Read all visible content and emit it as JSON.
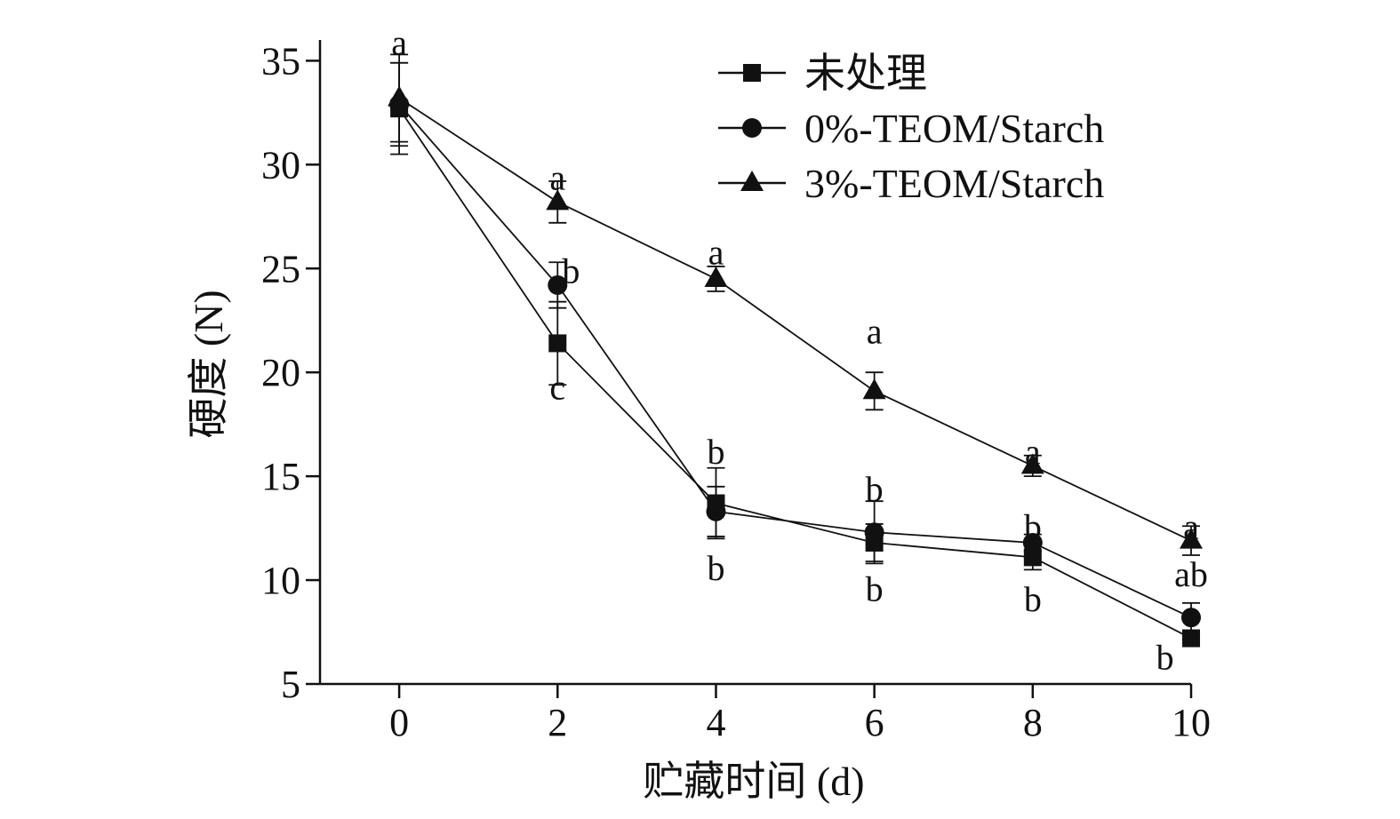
{
  "chart_data": {
    "type": "line",
    "xlabel": "贮藏时间 (d)",
    "ylabel": "硬度 (N)",
    "x": [
      0,
      2,
      4,
      6,
      8,
      10
    ],
    "xlim": [
      -1,
      10
    ],
    "ylim": [
      5,
      36
    ],
    "xticks": [
      0,
      2,
      4,
      6,
      8,
      10
    ],
    "yticks": [
      5,
      10,
      15,
      20,
      25,
      30,
      35
    ],
    "grid": false,
    "legend_position": "top-right",
    "series": [
      {
        "name": "未处理",
        "marker": "square",
        "values": [
          32.7,
          21.4,
          13.7,
          11.8,
          11.1,
          7.2
        ],
        "errors": [
          2.2,
          2.0,
          1.7,
          0.9,
          0.6,
          0.3
        ]
      },
      {
        "name": "0%-TEOM/Starch",
        "marker": "circle",
        "values": [
          32.9,
          24.2,
          13.3,
          12.3,
          11.8,
          8.2
        ],
        "errors": [
          2.0,
          1.1,
          1.2,
          1.5,
          0.4,
          0.7
        ]
      },
      {
        "name": "3%-TEOM/Starch",
        "marker": "triangle",
        "values": [
          33.2,
          28.2,
          24.5,
          19.1,
          15.5,
          11.9
        ],
        "errors": [
          2.1,
          1.0,
          0.6,
          0.9,
          0.5,
          0.7
        ]
      }
    ],
    "annotations": [
      {
        "text": "a",
        "x": 0,
        "y": 35.9
      },
      {
        "text": "a",
        "x": 2,
        "y": 29.4
      },
      {
        "text": "b",
        "x": 2.17,
        "y": 24.9
      },
      {
        "text": "c",
        "x": 2,
        "y": 19.3
      },
      {
        "text": "a",
        "x": 4,
        "y": 25.8
      },
      {
        "text": "b",
        "x": 4,
        "y": 16.2
      },
      {
        "text": "b",
        "x": 4,
        "y": 10.6
      },
      {
        "text": "a",
        "x": 6,
        "y": 22.0
      },
      {
        "text": "b",
        "x": 6,
        "y": 14.4
      },
      {
        "text": "b",
        "x": 6,
        "y": 9.6
      },
      {
        "text": "a",
        "x": 8,
        "y": 16.2
      },
      {
        "text": "b",
        "x": 8,
        "y": 12.6
      },
      {
        "text": "b",
        "x": 8,
        "y": 9.1
      },
      {
        "text": "a",
        "x": 10,
        "y": 12.6
      },
      {
        "text": "ab",
        "x": 10,
        "y": 10.3
      },
      {
        "text": "b",
        "x": 9.67,
        "y": 6.3
      }
    ]
  }
}
